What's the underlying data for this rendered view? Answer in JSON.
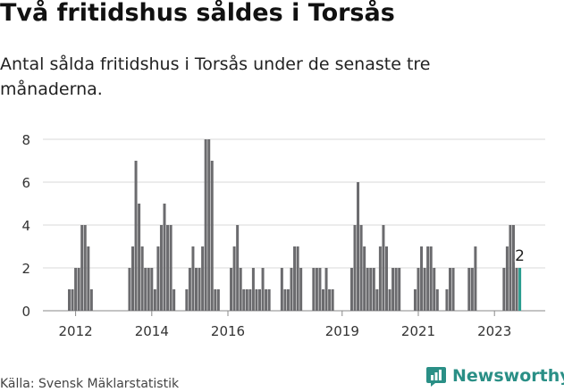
{
  "header": {
    "title": "Två fritidshus såldes i Torsås",
    "subtitle": "Antal sålda fritidshus i Torsås under de senaste tre månaderna."
  },
  "footer": {
    "source": "Källa: Svensk Mäklarstatistik",
    "brand": "Newsworthy"
  },
  "colors": {
    "bar": "#6b6b6e",
    "highlight": "#2a9d8f",
    "grid": "#d9d9d9",
    "brand": "#2a8f86"
  },
  "chart_data": {
    "type": "bar",
    "title": "Antal sålda fritidshus i Torsås under de senaste tre månaderna.",
    "xlabel": "",
    "ylabel": "",
    "ylim": [
      0,
      8
    ],
    "y_ticks": [
      "0",
      "2",
      "4",
      "6",
      "8"
    ],
    "x_tick_labels": [
      "2012",
      "2014",
      "2016",
      "2019",
      "2021",
      "2023"
    ],
    "x_tick_index": [
      2,
      26,
      50,
      86,
      110,
      134
    ],
    "values": [
      1,
      1,
      2,
      2,
      4,
      4,
      3,
      1,
      0,
      0,
      0,
      0,
      0,
      0,
      0,
      0,
      0,
      0,
      0,
      2,
      3,
      7,
      5,
      3,
      2,
      2,
      2,
      1,
      3,
      4,
      5,
      4,
      4,
      1,
      0,
      0,
      0,
      1,
      2,
      3,
      2,
      2,
      3,
      8,
      8,
      7,
      1,
      1,
      0,
      0,
      0,
      2,
      3,
      4,
      2,
      1,
      1,
      1,
      2,
      1,
      1,
      2,
      1,
      1,
      0,
      0,
      0,
      2,
      1,
      1,
      2,
      3,
      3,
      2,
      0,
      0,
      0,
      2,
      2,
      2,
      1,
      2,
      1,
      1,
      0,
      0,
      0,
      0,
      0,
      2,
      4,
      6,
      4,
      3,
      2,
      2,
      2,
      1,
      3,
      4,
      3,
      1,
      2,
      2,
      2,
      0,
      0,
      0,
      0,
      1,
      2,
      3,
      2,
      3,
      3,
      2,
      1,
      0,
      0,
      1,
      2,
      2,
      0,
      0,
      0,
      0,
      2,
      2,
      3,
      0,
      0,
      0,
      0,
      0,
      0,
      0,
      0,
      2,
      3,
      4,
      4,
      2,
      2
    ],
    "highlight_last": true,
    "annotation": "2"
  }
}
